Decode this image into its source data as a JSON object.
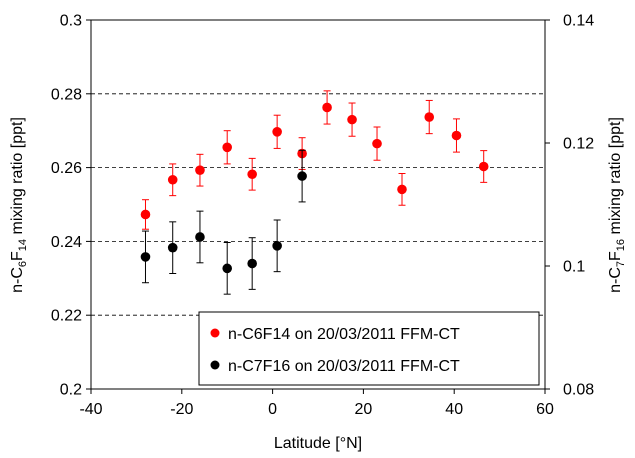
{
  "chart_data": {
    "type": "scatter",
    "xlabel": "Latitude [°N]",
    "ylabel_left_main": "n-C",
    "ylabel_left_sub1": "6",
    "ylabel_left_mid": "F",
    "ylabel_left_sub2": "14",
    "ylabel_left_tail": " mixing ratio [ppt]",
    "ylabel_right_main": "n-C",
    "ylabel_right_sub1": "7",
    "ylabel_right_mid": "F",
    "ylabel_right_sub2": "16",
    "ylabel_right_tail": " mixing ratio [ppt]",
    "xlim": [
      -40,
      60
    ],
    "ylim_left": [
      0.2,
      0.3
    ],
    "ylim_right": [
      0.08,
      0.14
    ],
    "x_ticks": [
      "-40",
      "-20",
      "0",
      "20",
      "40",
      "60"
    ],
    "y_left_ticks": [
      "0.2",
      "0.22",
      "0.24",
      "0.26",
      "0.28",
      "0.3"
    ],
    "y_right_ticks": [
      "0.08",
      "0.1",
      "0.12",
      "0.14"
    ],
    "grid": "horizontal dashed at 0.22, 0.24, 0.26, 0.28",
    "legend_position": "bottom-right",
    "series": [
      {
        "name": "n-C6F14 on 20/03/2011 FFM-CT",
        "color": "#ff0000",
        "axis": "left",
        "points": [
          {
            "x": -28,
            "y": 0.2473,
            "err": 0.004
          },
          {
            "x": -22,
            "y": 0.2567,
            "err": 0.0043
          },
          {
            "x": -16,
            "y": 0.2593,
            "err": 0.0043
          },
          {
            "x": -10,
            "y": 0.2655,
            "err": 0.0045
          },
          {
            "x": -4.5,
            "y": 0.2582,
            "err": 0.0043
          },
          {
            "x": 1,
            "y": 0.2697,
            "err": 0.0045
          },
          {
            "x": 6.5,
            "y": 0.2638,
            "err": 0.0043
          },
          {
            "x": 12,
            "y": 0.2763,
            "err": 0.0045
          },
          {
            "x": 17.5,
            "y": 0.273,
            "err": 0.0045
          },
          {
            "x": 23,
            "y": 0.2665,
            "err": 0.0045
          },
          {
            "x": 28.5,
            "y": 0.2541,
            "err": 0.0043
          },
          {
            "x": 34.5,
            "y": 0.2737,
            "err": 0.0045
          },
          {
            "x": 40.5,
            "y": 0.2687,
            "err": 0.0045
          },
          {
            "x": 46.5,
            "y": 0.2603,
            "err": 0.0043
          }
        ]
      },
      {
        "name": "n-C7F16 on 20/03/2011 FFM-CT",
        "color": "#000000",
        "axis": "left",
        "points": [
          {
            "x": -28,
            "y": 0.2358,
            "err": 0.007
          },
          {
            "x": -22,
            "y": 0.2383,
            "err": 0.007
          },
          {
            "x": -16,
            "y": 0.2412,
            "err": 0.007
          },
          {
            "x": -10,
            "y": 0.2327,
            "err": 0.007
          },
          {
            "x": -4.5,
            "y": 0.234,
            "err": 0.007
          },
          {
            "x": 1,
            "y": 0.2388,
            "err": 0.007
          },
          {
            "x": 6.5,
            "y": 0.2577,
            "err": 0.007
          }
        ]
      }
    ]
  }
}
